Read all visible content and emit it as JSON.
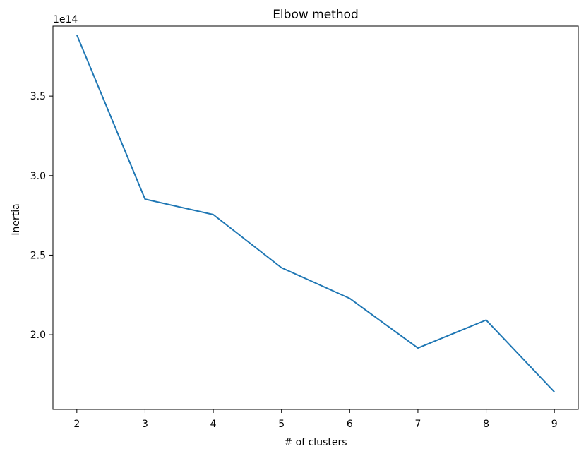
{
  "chart_data": {
    "type": "line",
    "title": "Elbow method",
    "xlabel": "# of clusters",
    "ylabel": "Inertia",
    "y_multiplier_label": "1e14",
    "x": [
      2,
      3,
      4,
      5,
      6,
      7,
      8,
      9
    ],
    "series": [
      {
        "values": [
          3.885,
          2.852,
          2.755,
          2.421,
          2.228,
          1.916,
          2.092,
          1.64
        ]
      }
    ],
    "xlim": [
      1.65,
      9.35
    ],
    "ylim": [
      1.53,
      3.94
    ],
    "xticks": [
      2,
      3,
      4,
      5,
      6,
      7,
      8,
      9
    ],
    "xtick_labels": [
      "2",
      "3",
      "4",
      "5",
      "6",
      "7",
      "8",
      "9"
    ],
    "yticks": [
      2.0,
      2.5,
      3.0,
      3.5
    ],
    "ytick_labels": [
      "2.0",
      "2.5",
      "3.0",
      "3.5"
    ],
    "line_color": "#1f77b4",
    "grid": false
  }
}
